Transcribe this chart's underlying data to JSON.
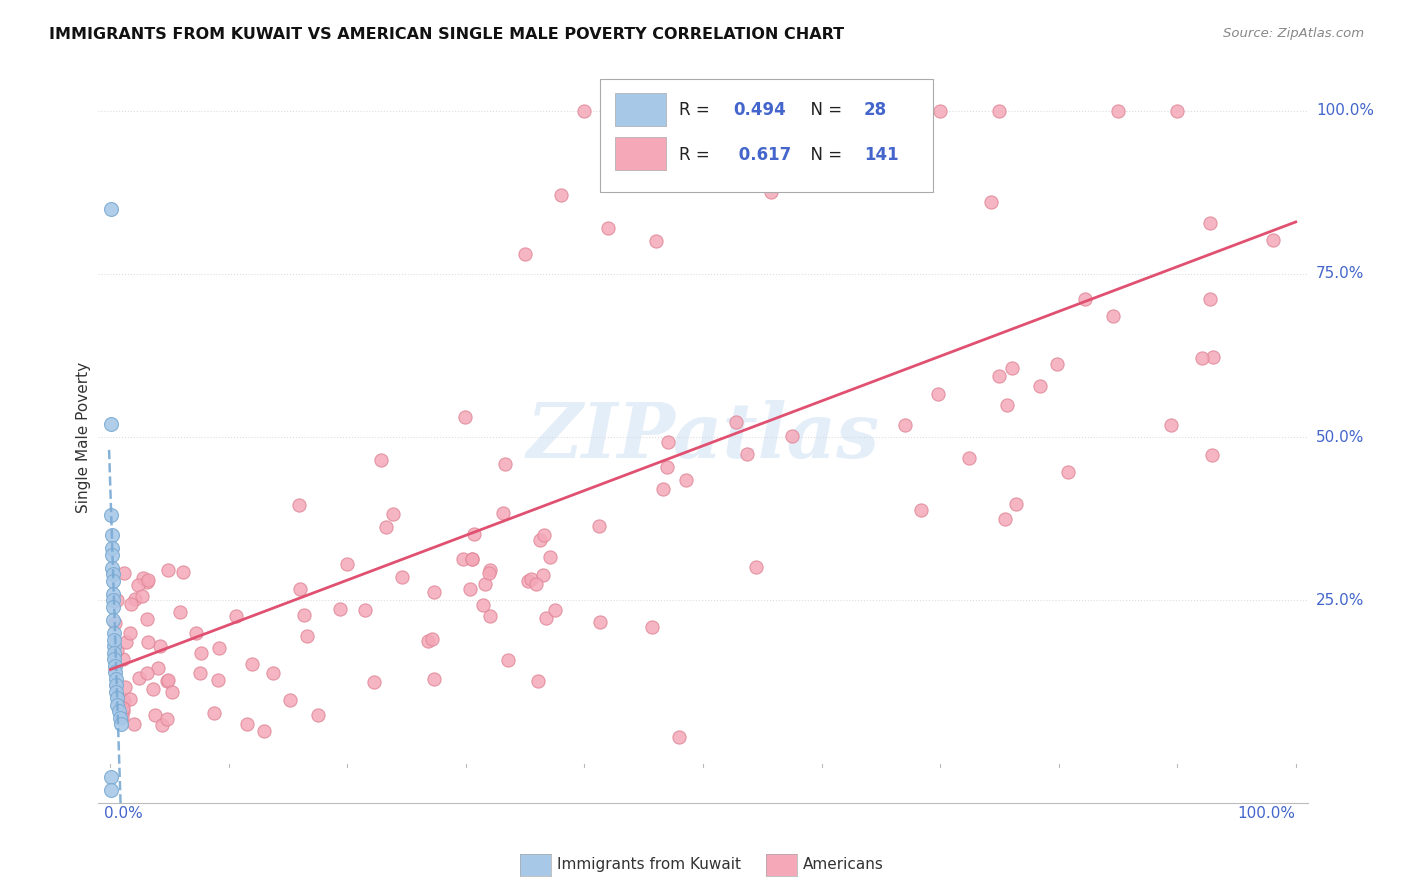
{
  "title": "IMMIGRANTS FROM KUWAIT VS AMERICAN SINGLE MALE POVERTY CORRELATION CHART",
  "source": "Source: ZipAtlas.com",
  "ylabel": "Single Male Poverty",
  "r_kuwait": 0.494,
  "n_kuwait": 28,
  "r_americans": 0.617,
  "n_americans": 141,
  "kuwait_color": "#a8c8e8",
  "kuwait_edge_color": "#7aaad0",
  "kuwait_line_color": "#7aaad4",
  "americans_color": "#f4a8b8",
  "americans_edge_color": "#e08898",
  "americans_line_color": "#e05070",
  "watermark": "ZIPatlas",
  "background_color": "#ffffff",
  "grid_color": "#dddddd",
  "axis_label_color": "#4466cc",
  "title_color": "#111111",
  "source_color": "#888888",
  "xlim": [
    0.0,
    1.0
  ],
  "ylim": [
    -0.06,
    1.06
  ],
  "ytick_positions": [
    0.25,
    0.5,
    0.75,
    1.0
  ],
  "ytick_labels": [
    "25.0%",
    "50.0%",
    "75.0%",
    "100.0%"
  ],
  "xtick_positions": [
    0.0,
    1.0
  ],
  "xtick_labels": [
    "0.0%",
    "100.0%"
  ]
}
